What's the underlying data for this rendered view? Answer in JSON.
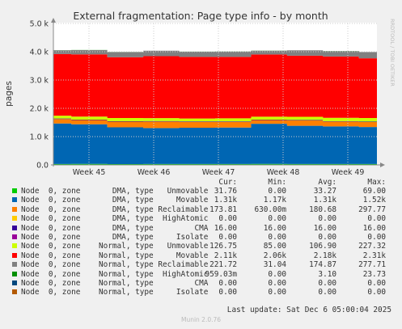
{
  "title": "External fragmentation: Page type info - by month",
  "watermark": "RRDTOOL / TOBI OETIKER",
  "munin_version": "Munin 2.0.76",
  "last_update": "Last update: Sat Dec  6 05:00:04 2025",
  "legend_headers": [
    "Cur:",
    "Min:",
    "Avg:",
    "Max:"
  ],
  "legend": [
    {
      "label": "Node  0, zone       DMA, type   Unmovable",
      "color": "#00cc00",
      "cur": "31.76",
      "min": "0.00",
      "avg": "33.27",
      "max": "69.00"
    },
    {
      "label": "Node  0, zone       DMA, type     Movable",
      "color": "#0066b3",
      "cur": "1.31k",
      "min": "1.17k",
      "avg": "1.31k",
      "max": "1.52k"
    },
    {
      "label": "Node  0, zone       DMA, type Reclaimable",
      "color": "#ff8000",
      "cur": "173.81",
      "min": "630.00m",
      "avg": "180.68",
      "max": "297.77"
    },
    {
      "label": "Node  0, zone       DMA, type  HighAtomic",
      "color": "#ffcc00",
      "cur": "0.00",
      "min": "0.00",
      "avg": "0.00",
      "max": "0.00"
    },
    {
      "label": "Node  0, zone       DMA, type         CMA",
      "color": "#330099",
      "cur": "16.00",
      "min": "16.00",
      "avg": "16.00",
      "max": "16.00"
    },
    {
      "label": "Node  0, zone       DMA, type     Isolate",
      "color": "#990099",
      "cur": "0.00",
      "min": "0.00",
      "avg": "0.00",
      "max": "0.00"
    },
    {
      "label": "Node  0, zone    Normal, type   Unmovable",
      "color": "#ccff00",
      "cur": "126.75",
      "min": "85.00",
      "avg": "106.90",
      "max": "227.32"
    },
    {
      "label": "Node  0, zone    Normal, type     Movable",
      "color": "#ff0000",
      "cur": "2.11k",
      "min": "2.06k",
      "avg": "2.18k",
      "max": "2.31k"
    },
    {
      "label": "Node  0, zone    Normal, type Reclaimable",
      "color": "#808080",
      "cur": "221.72",
      "min": "31.04",
      "avg": "174.87",
      "max": "277.71"
    },
    {
      "label": "Node  0, zone    Normal, type  HighAtomic",
      "color": "#008f00",
      "cur": "959.03m",
      "min": "0.00",
      "avg": "3.10",
      "max": "23.73"
    },
    {
      "label": "Node  0, zone    Normal, type         CMA",
      "color": "#00487d",
      "cur": "0.00",
      "min": "0.00",
      "avg": "0.00",
      "max": "0.00"
    },
    {
      "label": "Node  0, zone    Normal, type     Isolate",
      "color": "#b35a00",
      "cur": "0.00",
      "min": "0.00",
      "avg": "0.00",
      "max": "0.00"
    }
  ],
  "chart_data": {
    "type": "area",
    "title": "External fragmentation: Page type info - by month",
    "ylabel": "pages",
    "ylim": [
      0,
      5000
    ],
    "y_ticks": [
      0,
      1000,
      2000,
      3000,
      4000,
      5000
    ],
    "y_tick_labels": [
      "0.0",
      "1.0 k",
      "2.0 k",
      "3.0 k",
      "4.0 k",
      "5.0 k"
    ],
    "x_tick_labels": [
      "Week 45",
      "Week 46",
      "Week 47",
      "Week 48",
      "Week 49"
    ],
    "grid": true,
    "stacked": true,
    "series": [
      {
        "name": "DMA Unmovable",
        "values": [
          33,
          35,
          30,
          33,
          33,
          32,
          34,
          33,
          32,
          31
        ]
      },
      {
        "name": "DMA Movable",
        "values": [
          1430,
          1400,
          1300,
          1270,
          1280,
          1290,
          1420,
          1350,
          1330,
          1310
        ]
      },
      {
        "name": "DMA Reclaimable",
        "values": [
          160,
          150,
          200,
          230,
          210,
          200,
          130,
          190,
          170,
          174
        ]
      },
      {
        "name": "DMA HighAtomic",
        "values": [
          0,
          0,
          0,
          0,
          0,
          0,
          0,
          0,
          0,
          0
        ]
      },
      {
        "name": "DMA CMA",
        "values": [
          16,
          16,
          16,
          16,
          16,
          16,
          16,
          16,
          16,
          16
        ]
      },
      {
        "name": "DMA Isolate",
        "values": [
          0,
          0,
          0,
          0,
          0,
          0,
          0,
          0,
          0,
          0
        ]
      },
      {
        "name": "Normal Unmovable",
        "values": [
          100,
          105,
          110,
          105,
          100,
          110,
          105,
          110,
          115,
          127
        ]
      },
      {
        "name": "Normal Movable",
        "values": [
          2180,
          2200,
          2150,
          2190,
          2180,
          2170,
          2200,
          2160,
          2170,
          2110
        ]
      },
      {
        "name": "Normal Reclaimable",
        "values": [
          130,
          150,
          180,
          190,
          180,
          190,
          130,
          190,
          190,
          222
        ]
      },
      {
        "name": "Normal HighAtomic",
        "values": [
          5,
          3,
          2,
          3,
          4,
          2,
          3,
          2,
          3,
          1
        ]
      },
      {
        "name": "Normal CMA",
        "values": [
          0,
          0,
          0,
          0,
          0,
          0,
          0,
          0,
          0,
          0
        ]
      },
      {
        "name": "Normal Isolate",
        "values": [
          0,
          0,
          0,
          0,
          0,
          0,
          0,
          0,
          0,
          0
        ]
      }
    ]
  }
}
